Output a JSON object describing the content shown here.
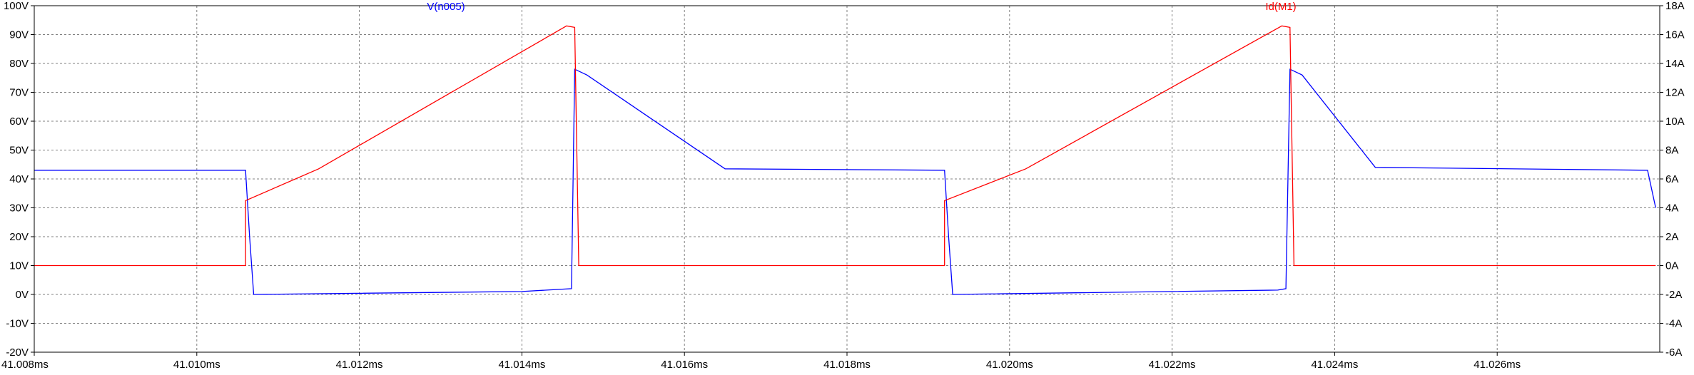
{
  "chart_data": {
    "type": "line",
    "xlabel": "",
    "ylabel": "",
    "x_unit": "ms",
    "xlim": [
      41.008,
      41.028
    ],
    "xticks": [
      "41.008ms",
      "41.010ms",
      "41.012ms",
      "41.014ms",
      "41.016ms",
      "41.018ms",
      "41.020ms",
      "41.022ms",
      "41.024ms",
      "41.026ms"
    ],
    "y_left": {
      "lim": [
        -20,
        100
      ],
      "ticks": [
        "-20V",
        "-10V",
        "0V",
        "10V",
        "20V",
        "30V",
        "40V",
        "50V",
        "60V",
        "70V",
        "80V",
        "90V",
        "100V"
      ]
    },
    "y_right": {
      "lim": [
        -6,
        18
      ],
      "ticks": [
        "-6A",
        "-4A",
        "-2A",
        "0A",
        "2A",
        "4A",
        "6A",
        "8A",
        "10A",
        "12A",
        "14A",
        "16A",
        "18A"
      ]
    },
    "grid": true,
    "series": [
      {
        "name": "V(n005)",
        "axis": "left",
        "color": "#0000ff",
        "x": [
          41.008,
          41.0106,
          41.01065,
          41.0107,
          41.014,
          41.01461,
          41.01465,
          41.0148,
          41.0165,
          41.0192,
          41.01925,
          41.0193,
          41.0233,
          41.0234,
          41.02345,
          41.0236,
          41.0245,
          41.02785,
          41.02795
        ],
        "y": [
          43,
          43,
          20,
          0,
          1,
          2,
          78,
          76,
          43.5,
          43,
          20,
          0,
          1.5,
          2,
          78,
          76,
          44,
          43,
          30
        ]
      },
      {
        "name": "Id(M1)",
        "axis": "right",
        "color": "#ff0000",
        "x": [
          41.008,
          41.0106,
          41.0106,
          41.0115,
          41.01455,
          41.01465,
          41.0147,
          41.0155,
          41.0192,
          41.0192,
          41.0202,
          41.02335,
          41.02345,
          41.0235,
          41.0243,
          41.02795
        ],
        "y": [
          0,
          0,
          4.5,
          6.7,
          16.6,
          16.5,
          0,
          0,
          0,
          4.5,
          6.7,
          16.6,
          16.5,
          0,
          0,
          0
        ]
      }
    ]
  }
}
